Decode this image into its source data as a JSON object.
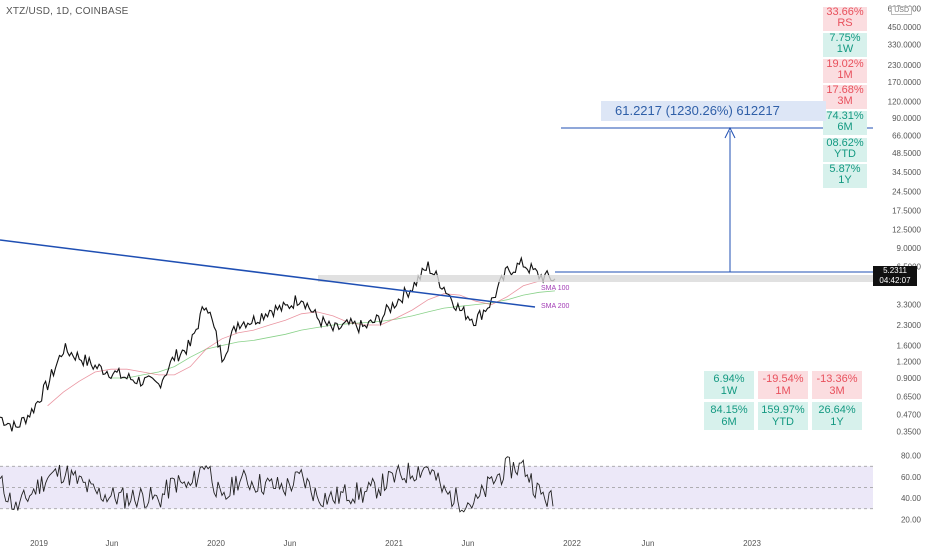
{
  "header": {
    "symbol": "XTZ/USD, 1D, COINBASE",
    "currency": "USD"
  },
  "axes": {
    "price_ticks": [
      "625.0000",
      "450.0000",
      "330.0000",
      "230.0000",
      "170.0000",
      "120.0000",
      "90.0000",
      "66.0000",
      "48.5000",
      "34.5000",
      "24.5000",
      "17.5000",
      "12.5000",
      "9.0000",
      "6.5000",
      "3.3000",
      "2.3000",
      "1.6000",
      "1.2000",
      "0.9000",
      "0.6500",
      "0.4700",
      "0.3500"
    ],
    "rsi_ticks": [
      "80.00",
      "60.00",
      "40.00",
      "20.00"
    ],
    "time_labels": [
      "2019",
      "Jun",
      "2020",
      "Jun",
      "2021",
      "Jun",
      "2022",
      "Jun",
      "2023"
    ]
  },
  "right_badges": [
    {
      "value": "33.66%",
      "period": "RS",
      "tone": "neg"
    },
    {
      "value": "7.75%",
      "period": "1W",
      "tone": "pos"
    },
    {
      "value": "19.02%",
      "period": "1M",
      "tone": "neg"
    },
    {
      "value": "17.68%",
      "period": "3M",
      "tone": "neg"
    },
    {
      "value": "74.31%",
      "period": "6M",
      "tone": "pos"
    },
    {
      "value": "08.62%",
      "period": "YTD",
      "tone": "pos"
    },
    {
      "value": "5.87%",
      "period": "1Y",
      "tone": "pos"
    }
  ],
  "perf_grid": [
    {
      "value": "6.94%",
      "period": "1W",
      "tone": "pos"
    },
    {
      "value": "-19.54%",
      "period": "1M",
      "tone": "neg"
    },
    {
      "value": "-13.36%",
      "period": "3M",
      "tone": "neg"
    },
    {
      "value": "84.15%",
      "period": "6M",
      "tone": "pos"
    },
    {
      "value": "159.97%",
      "period": "YTD",
      "tone": "pos"
    },
    {
      "value": "26.64%",
      "period": "1Y",
      "tone": "pos"
    }
  ],
  "measure_text": "61.2217 (1230.26%) 612217",
  "price_tag": {
    "price": "5.2311",
    "countdown": "04:42:07"
  },
  "sma_labels": {
    "sma100": "SMA 100",
    "sma200": "SMA 200"
  },
  "colors": {
    "up": "#139981",
    "down": "#e8505c",
    "trendline": "#1f4fb3",
    "measure": "#2f5fa8",
    "sma100": "#e57a8a",
    "sma200": "#6cc56c",
    "rsi_band": "#ece8f8"
  },
  "chart_data": {
    "type": "line",
    "title": "XTZ/USD, 1D, COINBASE",
    "scale": "log",
    "ylim": [
      0.3,
      700
    ],
    "x": [
      "2019-01",
      "2019-02",
      "2019-03",
      "2019-04",
      "2019-05",
      "2019-06",
      "2019-07",
      "2019-08",
      "2019-09",
      "2019-10",
      "2019-11",
      "2019-12",
      "2020-01",
      "2020-02",
      "2020-03",
      "2020-04",
      "2020-05",
      "2020-06",
      "2020-07",
      "2020-08",
      "2020-09",
      "2020-10",
      "2020-11",
      "2020-12",
      "2021-01",
      "2021-02",
      "2021-03",
      "2021-04",
      "2021-05",
      "2021-06",
      "2021-07",
      "2021-08",
      "2021-09",
      "2021-10",
      "2021-11",
      "2021-12"
    ],
    "series": [
      {
        "values": [
          0.45,
          0.37,
          0.5,
          0.8,
          1.5,
          1.3,
          1.1,
          1.0,
          0.9,
          0.85,
          0.8,
          1.3,
          1.6,
          3.5,
          1.3,
          2.4,
          2.5,
          3.0,
          3.1,
          3.8,
          2.6,
          2.1,
          2.3,
          2.2,
          2.6,
          3.5,
          4.5,
          6.5,
          4.5,
          3.0,
          2.5,
          3.5,
          6.0,
          6.8,
          5.5,
          5.2
        ]
      },
      {
        "name": "SMA 100",
        "values": [
          null,
          null,
          null,
          0.55,
          0.7,
          0.85,
          1.0,
          1.05,
          1.05,
          1.0,
          0.95,
          0.95,
          1.1,
          1.5,
          1.8,
          2.0,
          2.1,
          2.3,
          2.5,
          2.8,
          2.9,
          2.7,
          2.4,
          2.3,
          2.3,
          2.6,
          3.0,
          3.6,
          4.0,
          3.9,
          3.5,
          3.3,
          3.8,
          4.6,
          5.0,
          5.0
        ]
      },
      {
        "name": "SMA 200",
        "values": [
          null,
          null,
          null,
          null,
          null,
          null,
          null,
          0.9,
          0.9,
          0.95,
          1.0,
          1.1,
          1.3,
          1.5,
          1.6,
          1.7,
          1.75,
          1.85,
          1.95,
          2.1,
          2.2,
          2.3,
          2.35,
          2.4,
          2.45,
          2.55,
          2.7,
          2.9,
          3.1,
          3.2,
          3.3,
          3.4,
          3.6,
          3.9,
          4.1,
          4.2
        ]
      }
    ],
    "rsi": {
      "ylim": [
        10,
        90
      ],
      "bands": [
        30,
        70
      ],
      "values": [
        55,
        30,
        45,
        60,
        65,
        55,
        45,
        42,
        40,
        42,
        38,
        55,
        50,
        75,
        35,
        58,
        55,
        52,
        50,
        60,
        42,
        40,
        45,
        44,
        52,
        60,
        65,
        70,
        45,
        38,
        35,
        55,
        68,
        70,
        45,
        35
      ]
    }
  }
}
